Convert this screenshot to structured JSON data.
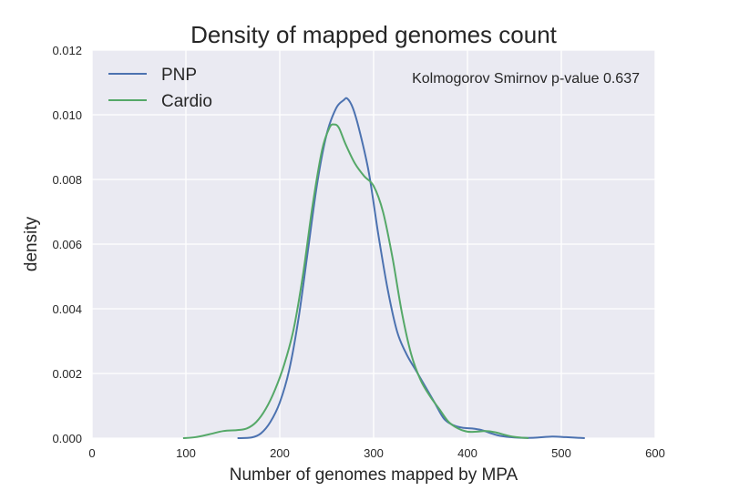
{
  "chart_data": {
    "type": "line",
    "title": "Density of mapped genomes count",
    "xlabel": "Number of genomes mapped by MPA",
    "ylabel": "density",
    "xlim": [
      0,
      600
    ],
    "ylim": [
      0,
      0.012
    ],
    "x_ticks": [
      0,
      100,
      200,
      300,
      400,
      500,
      600
    ],
    "x_tick_labels": [
      "0",
      "100",
      "200",
      "300",
      "400",
      "500",
      "600"
    ],
    "y_ticks": [
      0,
      0.002,
      0.004,
      0.006,
      0.008,
      0.01,
      0.012
    ],
    "y_tick_labels": [
      "0.000",
      "0.002",
      "0.004",
      "0.006",
      "0.008",
      "0.010",
      "0.012"
    ],
    "grid": true,
    "legend_position": "top-left",
    "annotation": "Kolmogorov Smirnov p-value 0.637",
    "colors": {
      "background": "#eaeaf2",
      "grid": "#ffffff",
      "text": "#262626"
    },
    "series": [
      {
        "name": "PNP",
        "color": "#4c72b0",
        "points": [
          [
            155,
            0
          ],
          [
            170,
            2e-05
          ],
          [
            180,
            0.00015
          ],
          [
            190,
            0.0005
          ],
          [
            200,
            0.0011
          ],
          [
            210,
            0.0021
          ],
          [
            220,
            0.0037
          ],
          [
            230,
            0.0058
          ],
          [
            240,
            0.0079
          ],
          [
            250,
            0.0094
          ],
          [
            260,
            0.0102
          ],
          [
            268,
            0.01045
          ],
          [
            272,
            0.0105
          ],
          [
            278,
            0.0102
          ],
          [
            285,
            0.0095
          ],
          [
            295,
            0.0082
          ],
          [
            305,
            0.0063
          ],
          [
            315,
            0.0046
          ],
          [
            325,
            0.0033
          ],
          [
            335,
            0.0026
          ],
          [
            345,
            0.0021
          ],
          [
            355,
            0.0016
          ],
          [
            365,
            0.0011
          ],
          [
            375,
            0.0006
          ],
          [
            385,
            0.0004
          ],
          [
            395,
            0.00032
          ],
          [
            405,
            0.0003
          ],
          [
            415,
            0.00025
          ],
          [
            425,
            0.00015
          ],
          [
            435,
            7e-05
          ],
          [
            450,
            2e-05
          ],
          [
            470,
            1e-05
          ],
          [
            490,
            5e-05
          ],
          [
            505,
            3e-05
          ],
          [
            525,
            0
          ]
        ]
      },
      {
        "name": "Cardio",
        "color": "#55a868",
        "points": [
          [
            97,
            0
          ],
          [
            110,
            3e-05
          ],
          [
            125,
            0.00012
          ],
          [
            140,
            0.00022
          ],
          [
            155,
            0.00025
          ],
          [
            165,
            0.0003
          ],
          [
            175,
            0.0005
          ],
          [
            185,
            0.0009
          ],
          [
            195,
            0.0015
          ],
          [
            205,
            0.0023
          ],
          [
            215,
            0.0034
          ],
          [
            225,
            0.0051
          ],
          [
            235,
            0.0072
          ],
          [
            245,
            0.0089
          ],
          [
            253,
            0.0096
          ],
          [
            258,
            0.0097
          ],
          [
            263,
            0.0096
          ],
          [
            270,
            0.0091
          ],
          [
            280,
            0.0085
          ],
          [
            290,
            0.0081
          ],
          [
            300,
            0.0078
          ],
          [
            310,
            0.007
          ],
          [
            320,
            0.0056
          ],
          [
            330,
            0.0039
          ],
          [
            340,
            0.0026
          ],
          [
            350,
            0.0018
          ],
          [
            360,
            0.0013
          ],
          [
            370,
            0.0009
          ],
          [
            380,
            0.0005
          ],
          [
            390,
            0.0003
          ],
          [
            400,
            0.0002
          ],
          [
            410,
            0.0002
          ],
          [
            420,
            0.00022
          ],
          [
            430,
            0.00018
          ],
          [
            440,
            0.0001
          ],
          [
            450,
            4e-05
          ],
          [
            465,
            0
          ]
        ]
      }
    ]
  }
}
